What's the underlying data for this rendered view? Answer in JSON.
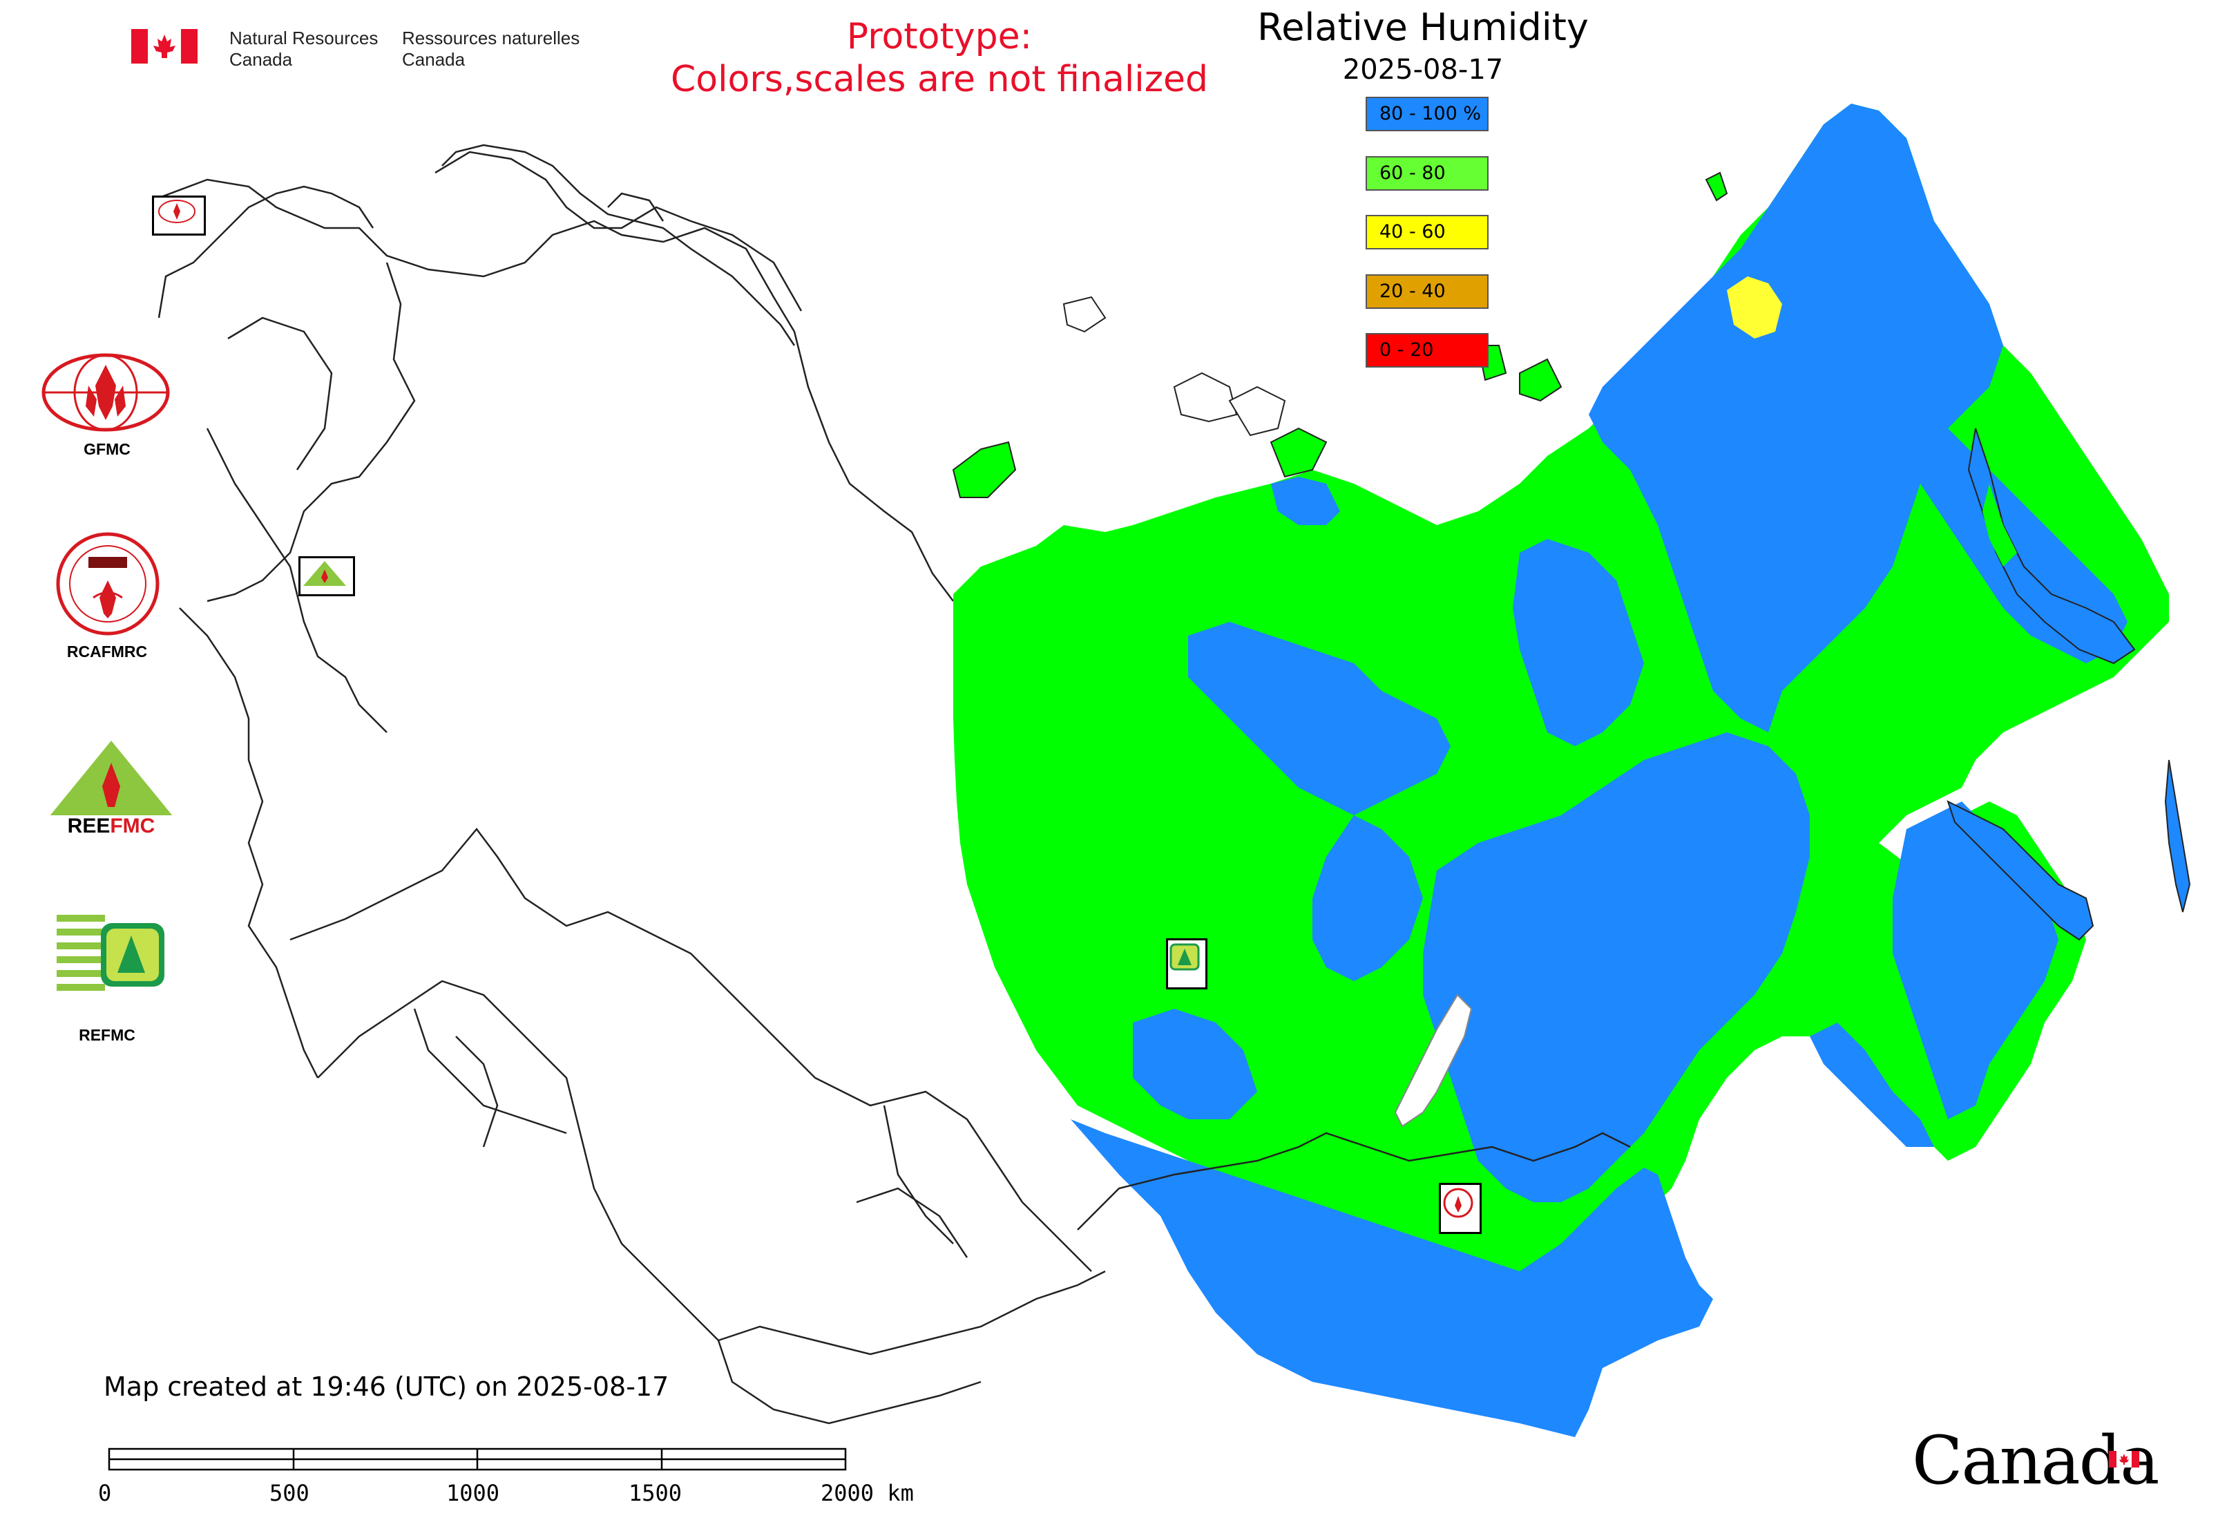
{
  "header": {
    "nrcan_en_line1": "Natural Resources",
    "nrcan_en_line2": "Canada",
    "nrcan_fr_line1": "Ressources naturelles",
    "nrcan_fr_line2": "Canada",
    "prototype_line1": "Prototype:",
    "prototype_line2": "Colors,scales are not finalized"
  },
  "legend": {
    "title": "Relative Humidity",
    "date": "2025-08-17",
    "classes": [
      {
        "label": "80 - 100 %",
        "color": "#1e88ff"
      },
      {
        "label": "60 - 80",
        "color": "#66ff33"
      },
      {
        "label": "40 - 60",
        "color": "#ffff00"
      },
      {
        "label": "20 - 40",
        "color": "#e0a000"
      },
      {
        "label": "0 - 20",
        "color": "#ff0000"
      }
    ]
  },
  "logos": {
    "gfmc": "GFMC",
    "rcafmrc": "RCAFMRC",
    "reefmc": "REEFMC",
    "refmc": "REFMC"
  },
  "footer": {
    "created": "Map created at 19:46 (UTC) on 2025-08-17",
    "scale_ticks": [
      "0",
      "500",
      "1000",
      "1500",
      "2000 km"
    ],
    "canada_wordmark": "Canada"
  },
  "colors": {
    "humid_blue": "#1e88ff",
    "humid_green": "#00ff00",
    "humid_yellow": "#ffff33",
    "prototype_red": "#e8102a"
  }
}
